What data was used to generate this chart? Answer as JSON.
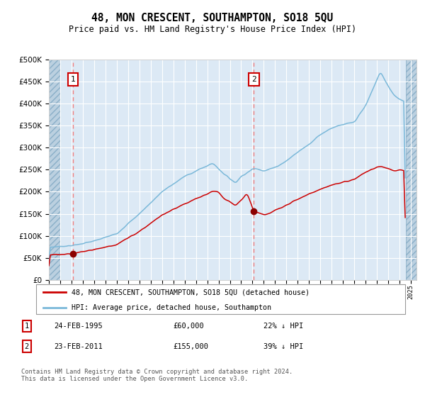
{
  "title": "48, MON CRESCENT, SOUTHAMPTON, SO18 5QU",
  "subtitle": "Price paid vs. HM Land Registry's House Price Index (HPI)",
  "hpi_label": "HPI: Average price, detached house, Southampton",
  "property_label": "48, MON CRESCENT, SOUTHAMPTON, SO18 5QU (detached house)",
  "sale1_date": "24-FEB-1995",
  "sale1_price": 60000,
  "sale1_hpi_pct": "22% ↓ HPI",
  "sale2_date": "23-FEB-2011",
  "sale2_price": 155000,
  "sale2_hpi_pct": "39% ↓ HPI",
  "footer": "Contains HM Land Registry data © Crown copyright and database right 2024.\nThis data is licensed under the Open Government Licence v3.0.",
  "ylim": [
    0,
    500000
  ],
  "xlim_start": 1993.0,
  "xlim_end": 2025.5,
  "hatch_left_end": 1994.0,
  "hatch_right_start": 2024.58,
  "plot_bg": "#dce9f5",
  "hpi_color": "#7ab8d9",
  "property_color": "#cc0000",
  "hatch_color": "#aec6d8",
  "grid_color": "#ffffff",
  "dashed_color": "#f08080",
  "marker_color": "#8b0000",
  "sale1_x": 1995.12,
  "sale2_x": 2011.12,
  "hpi_waypoints": [
    [
      1993.0,
      74000
    ],
    [
      1995.12,
      78000
    ],
    [
      1997.0,
      88000
    ],
    [
      1999.0,
      105000
    ],
    [
      2001.0,
      150000
    ],
    [
      2003.0,
      200000
    ],
    [
      2005.0,
      235000
    ],
    [
      2007.5,
      265000
    ],
    [
      2008.5,
      240000
    ],
    [
      2009.5,
      220000
    ],
    [
      2010.0,
      235000
    ],
    [
      2011.12,
      253000
    ],
    [
      2012.0,
      248000
    ],
    [
      2013.0,
      255000
    ],
    [
      2014.0,
      270000
    ],
    [
      2015.0,
      290000
    ],
    [
      2016.0,
      308000
    ],
    [
      2017.0,
      330000
    ],
    [
      2018.0,
      345000
    ],
    [
      2019.0,
      352000
    ],
    [
      2020.0,
      358000
    ],
    [
      2021.0,
      395000
    ],
    [
      2022.3,
      472000
    ],
    [
      2023.0,
      440000
    ],
    [
      2023.5,
      420000
    ],
    [
      2024.0,
      410000
    ],
    [
      2024.5,
      405000
    ]
  ],
  "prop_waypoints": [
    [
      1993.0,
      56000
    ],
    [
      1995.12,
      60000
    ],
    [
      1997.0,
      69000
    ],
    [
      1999.0,
      80000
    ],
    [
      2001.0,
      110000
    ],
    [
      2003.0,
      147000
    ],
    [
      2005.0,
      172000
    ],
    [
      2007.0,
      195000
    ],
    [
      2007.5,
      202000
    ],
    [
      2008.0,
      198000
    ],
    [
      2008.5,
      185000
    ],
    [
      2009.0,
      178000
    ],
    [
      2009.5,
      168000
    ],
    [
      2010.0,
      182000
    ],
    [
      2010.5,
      197000
    ],
    [
      2011.12,
      155000
    ],
    [
      2012.0,
      148000
    ],
    [
      2012.5,
      150000
    ],
    [
      2013.0,
      158000
    ],
    [
      2014.0,
      170000
    ],
    [
      2015.0,
      183000
    ],
    [
      2016.0,
      195000
    ],
    [
      2017.0,
      205000
    ],
    [
      2018.0,
      215000
    ],
    [
      2019.0,
      222000
    ],
    [
      2020.0,
      228000
    ],
    [
      2021.0,
      245000
    ],
    [
      2022.3,
      258000
    ],
    [
      2023.0,
      253000
    ],
    [
      2023.5,
      248000
    ],
    [
      2024.0,
      250000
    ],
    [
      2024.5,
      248000
    ]
  ]
}
